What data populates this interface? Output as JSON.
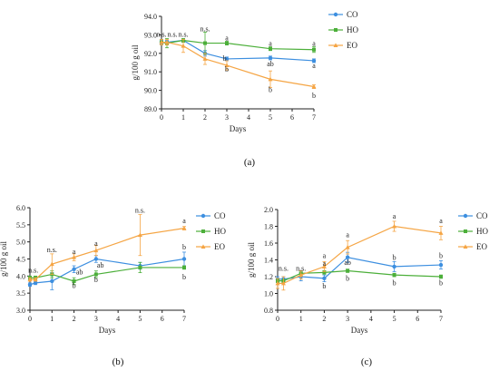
{
  "colors": {
    "CO": "#3d8fe0",
    "HO": "#4caf3a",
    "EO": "#f5a544"
  },
  "chart_data": [
    {
      "type": "line",
      "panel_label": "(a)",
      "xlabel": "Days",
      "ylabel": "g/100 g oil",
      "xlim": [
        0,
        7
      ],
      "ylim": [
        89.0,
        94.0
      ],
      "xticks": [
        0,
        1,
        2,
        3,
        4,
        5,
        6,
        7
      ],
      "xtick_labels": [
        "0",
        "1",
        "2",
        "3",
        "4",
        "5",
        "6",
        "7"
      ],
      "yticks": [
        89.0,
        90.0,
        91.0,
        92.0,
        93.0,
        94.0
      ],
      "ytick_labels": [
        "89.0",
        "90.0",
        "91.0",
        "92.0",
        "93.0",
        "94.0"
      ],
      "legend": [
        "CO",
        "HO",
        "EO"
      ],
      "legend_position": "right",
      "x": [
        0,
        0.25,
        1,
        2,
        3,
        5,
        7
      ],
      "series": [
        {
          "name": "CO",
          "values": [
            92.6,
            92.6,
            92.7,
            92.0,
            91.7,
            91.75,
            91.6
          ],
          "errors": [
            0.1,
            0.1,
            0.05,
            0.15,
            0.1,
            0.1,
            0.1
          ]
        },
        {
          "name": "HO",
          "values": [
            92.6,
            92.55,
            92.7,
            92.55,
            92.55,
            92.25,
            92.2
          ],
          "errors": [
            0.15,
            0.25,
            0.1,
            0.6,
            0.1,
            0.1,
            0.15
          ]
        },
        {
          "name": "EO",
          "values": [
            92.6,
            92.6,
            92.4,
            91.7,
            91.35,
            90.6,
            90.2
          ],
          "errors": [
            0.15,
            0.15,
            0.35,
            0.3,
            0.25,
            0.45,
            0.1
          ]
        }
      ],
      "annotations": [
        {
          "x": 0,
          "y": 92.9,
          "text": "n.s."
        },
        {
          "x": 0.5,
          "y": 92.9,
          "text": "n.s."
        },
        {
          "x": 1,
          "y": 92.9,
          "text": "n.s."
        },
        {
          "x": 2,
          "y": 93.2,
          "text": "n.s."
        },
        {
          "x": 3,
          "y": 92.7,
          "text": "a"
        },
        {
          "x": 3,
          "y": 91.0,
          "text": "b"
        },
        {
          "x": 2.9,
          "y": 91.6,
          "text": "b"
        },
        {
          "x": 5,
          "y": 92.4,
          "text": "a"
        },
        {
          "x": 5,
          "y": 91.3,
          "text": "ab"
        },
        {
          "x": 5,
          "y": 89.9,
          "text": "b"
        },
        {
          "x": 7,
          "y": 92.4,
          "text": "a"
        },
        {
          "x": 7,
          "y": 91.2,
          "text": "a"
        },
        {
          "x": 7,
          "y": 89.6,
          "text": "b"
        }
      ]
    },
    {
      "type": "line",
      "panel_label": "(b)",
      "xlabel": "Days",
      "ylabel": "g/100 g oil",
      "xlim": [
        0,
        7
      ],
      "ylim": [
        3.0,
        6.0
      ],
      "xticks": [
        0,
        1,
        2,
        3,
        4,
        5,
        6,
        7
      ],
      "xtick_labels": [
        "0",
        "1",
        "2",
        "3",
        "4",
        "5",
        "6",
        "7"
      ],
      "yticks": [
        3.0,
        3.5,
        4.0,
        4.5,
        5.0,
        5.5,
        6.0
      ],
      "ytick_labels": [
        "3.0",
        "3.5",
        "4.0",
        "4.5",
        "5.0",
        "5.5",
        "6.0"
      ],
      "legend": [
        "CO",
        "HO",
        "EO"
      ],
      "legend_position": "right",
      "x": [
        0,
        0.25,
        1,
        2,
        3,
        5,
        7
      ],
      "series": [
        {
          "name": "CO",
          "values": [
            3.75,
            3.8,
            3.85,
            4.2,
            4.5,
            4.3,
            4.5
          ],
          "errors": [
            0.05,
            0.05,
            0.25,
            0.1,
            0.1,
            0.1,
            0.2
          ]
        },
        {
          "name": "HO",
          "values": [
            3.95,
            3.95,
            4.05,
            3.85,
            4.05,
            4.25,
            4.25
          ],
          "errors": [
            0.05,
            0.05,
            0.1,
            0.1,
            0.1,
            0.15,
            0.05
          ]
        },
        {
          "name": "EO",
          "values": [
            3.9,
            3.9,
            4.35,
            4.55,
            4.75,
            5.2,
            5.4
          ],
          "errors": [
            0.05,
            0.05,
            0.3,
            0.1,
            0.15,
            0.6,
            0.05
          ]
        }
      ],
      "annotations": [
        {
          "x": 0.15,
          "y": 4.1,
          "text": "n.s."
        },
        {
          "x": 1,
          "y": 4.7,
          "text": "n.s."
        },
        {
          "x": 2,
          "y": 4.65,
          "text": "a"
        },
        {
          "x": 2.25,
          "y": 4.05,
          "text": "ab"
        },
        {
          "x": 2,
          "y": 3.65,
          "text": "b"
        },
        {
          "x": 3,
          "y": 4.88,
          "text": "a"
        },
        {
          "x": 3.2,
          "y": 4.25,
          "text": "ab"
        },
        {
          "x": 3,
          "y": 3.82,
          "text": "b"
        },
        {
          "x": 5,
          "y": 5.85,
          "text": "n.s."
        },
        {
          "x": 7,
          "y": 5.55,
          "text": "a"
        },
        {
          "x": 7,
          "y": 4.78,
          "text": "b"
        },
        {
          "x": 7,
          "y": 3.9,
          "text": "b"
        }
      ]
    },
    {
      "type": "line",
      "panel_label": "(c)",
      "xlabel": "Days",
      "ylabel": "g/100 g oil",
      "xlim": [
        0,
        7
      ],
      "ylim": [
        0.8,
        2.0
      ],
      "xticks": [
        0,
        1,
        2,
        3,
        4,
        5,
        6,
        7
      ],
      "xtick_labels": [
        "0",
        "1",
        "2",
        "3",
        "4",
        "5",
        "6",
        "7"
      ],
      "yticks": [
        0.8,
        1.0,
        1.2,
        1.4,
        1.6,
        1.8,
        2.0
      ],
      "ytick_labels": [
        "0.8",
        "1.0",
        "1.2",
        "1.4",
        "1.6",
        "1.8",
        "2.0"
      ],
      "legend": [
        "CO",
        "HO",
        "EO"
      ],
      "legend_position": "right",
      "x": [
        0,
        0.25,
        1,
        2,
        3,
        5,
        7
      ],
      "series": [
        {
          "name": "CO",
          "values": [
            1.17,
            1.17,
            1.2,
            1.18,
            1.43,
            1.32,
            1.34
          ],
          "errors": [
            0.03,
            0.03,
            0.05,
            0.04,
            0.06,
            0.06,
            0.05
          ]
        },
        {
          "name": "HO",
          "values": [
            1.15,
            1.15,
            1.24,
            1.25,
            1.27,
            1.22,
            1.2
          ],
          "errors": [
            0.02,
            0.02,
            0.03,
            0.02,
            0.02,
            0.02,
            0.02
          ]
        },
        {
          "name": "EO",
          "values": [
            1.12,
            1.12,
            1.22,
            1.32,
            1.55,
            1.8,
            1.72
          ],
          "errors": [
            0.06,
            0.08,
            0.05,
            0.06,
            0.08,
            0.06,
            0.08
          ]
        }
      ],
      "annotations": [
        {
          "x": 0.25,
          "y": 1.27,
          "text": "n.s."
        },
        {
          "x": 1,
          "y": 1.27,
          "text": "n.s."
        },
        {
          "x": 2,
          "y": 1.42,
          "text": "a"
        },
        {
          "x": 2,
          "y": 1.33,
          "text": "a"
        },
        {
          "x": 2,
          "y": 1.06,
          "text": "b"
        },
        {
          "x": 3,
          "y": 1.67,
          "text": "a"
        },
        {
          "x": 3,
          "y": 1.34,
          "text": "ab"
        },
        {
          "x": 3,
          "y": 1.15,
          "text": "b"
        },
        {
          "x": 5,
          "y": 1.89,
          "text": "a"
        },
        {
          "x": 5,
          "y": 1.4,
          "text": "b"
        },
        {
          "x": 5,
          "y": 1.1,
          "text": "b"
        },
        {
          "x": 7,
          "y": 1.84,
          "text": "a"
        },
        {
          "x": 7,
          "y": 1.42,
          "text": "b"
        },
        {
          "x": 7,
          "y": 1.1,
          "text": "b"
        }
      ]
    }
  ]
}
